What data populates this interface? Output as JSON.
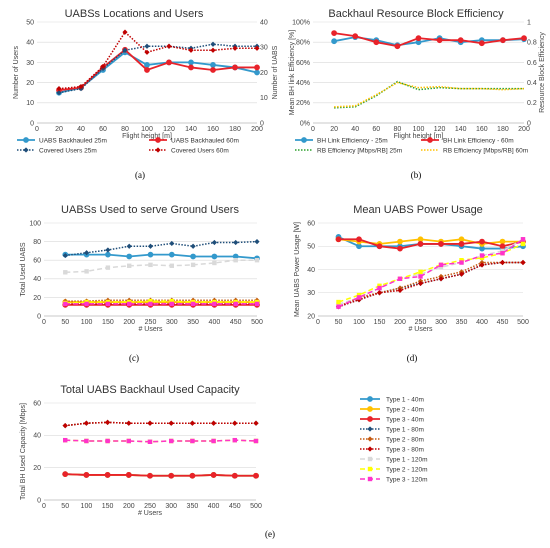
{
  "chart_data": [
    {
      "panel_label": "(a)",
      "type": "line",
      "title": "UABSs Locations and Users",
      "xlabel": "Flight height [m]",
      "ylabel": "Number of Users",
      "y2label": "Number of UABS",
      "x": [
        20,
        40,
        60,
        80,
        100,
        120,
        140,
        160,
        180,
        200
      ],
      "xlim": [
        0,
        200
      ],
      "ylim": [
        0,
        50
      ],
      "y2lim": [
        0,
        40
      ],
      "xticks": [
        "0",
        "20",
        "40",
        "60",
        "80",
        "100",
        "120",
        "140",
        "160",
        "180",
        "200"
      ],
      "yticks": [
        "0",
        "10",
        "20",
        "30",
        "40",
        "50"
      ],
      "y2ticks": [
        "0",
        "10",
        "20",
        "30",
        "40"
      ],
      "legend_position": "bottom",
      "series": [
        {
          "name": "UABS Backhauled 25m",
          "axis": "y2",
          "style": "solid",
          "color": "#3399cc",
          "marker": "circle",
          "values": [
            12,
            14,
            21,
            28,
            23,
            24,
            24,
            23,
            22,
            20
          ]
        },
        {
          "name": "UABS Backhauled 60m",
          "axis": "y2",
          "style": "solid",
          "color": "#e8232a",
          "marker": "circle",
          "values": [
            13,
            14,
            22,
            29,
            21,
            24,
            22,
            21,
            22,
            22
          ]
        },
        {
          "name": "Covered Users 25m",
          "axis": "y",
          "style": "dotted",
          "color": "#1f4e79",
          "marker": "diamond",
          "values": [
            15,
            17,
            27,
            36,
            38,
            38,
            37,
            39,
            38,
            38
          ]
        },
        {
          "name": "Covered Users 60m",
          "axis": "y",
          "style": "dotted",
          "color": "#c00000",
          "marker": "diamond",
          "values": [
            17,
            18,
            28,
            45,
            35,
            38,
            36,
            36,
            37,
            37
          ]
        }
      ]
    },
    {
      "panel_label": "(b)",
      "type": "line",
      "title": "Backhaul Resource Block Efficiency",
      "xlabel": "Flight height [m]",
      "ylabel": "Mean BH link Efficiency [%]",
      "y2label": "Resource Block Efficiency",
      "x": [
        20,
        40,
        60,
        80,
        100,
        120,
        140,
        160,
        180,
        200
      ],
      "xlim": [
        0,
        200
      ],
      "ylim": [
        0,
        100
      ],
      "y2lim": [
        0,
        1
      ],
      "xticks": [
        "0",
        "20",
        "40",
        "60",
        "80",
        "100",
        "120",
        "140",
        "160",
        "180",
        "200"
      ],
      "yticks": [
        "0%",
        "20%",
        "40%",
        "60%",
        "80%",
        "100%"
      ],
      "y2ticks": [
        "0",
        "0.2",
        "0.4",
        "0.6",
        "0.8",
        "1"
      ],
      "legend_position": "bottom",
      "series": [
        {
          "name": "BH Link Efficiency - 25m",
          "axis": "y",
          "style": "solid",
          "color": "#3399cc",
          "marker": "circle",
          "values": [
            81,
            85,
            82,
            77,
            80,
            84,
            80,
            82,
            82,
            83
          ]
        },
        {
          "name": "BH Link Efficiency - 60m",
          "axis": "y",
          "style": "solid",
          "color": "#e8232a",
          "marker": "circle",
          "values": [
            89,
            86,
            80,
            76,
            84,
            82,
            82,
            79,
            82,
            84
          ]
        },
        {
          "name": "RB Efficiency [Mbps/RB] 25m",
          "axis": "y2",
          "style": "dotted",
          "color": "#2ca02c",
          "marker": "none",
          "values": [
            0.15,
            0.16,
            0.27,
            0.41,
            0.33,
            0.35,
            0.34,
            0.34,
            0.34,
            0.34
          ]
        },
        {
          "name": "RB Efficiency [Mbps/RB] 60m",
          "axis": "y2",
          "style": "dotted",
          "color": "#ffc000",
          "marker": "none",
          "values": [
            0.16,
            0.17,
            0.28,
            0.4,
            0.35,
            0.36,
            0.34,
            0.34,
            0.33,
            0.34
          ]
        }
      ]
    },
    {
      "panel_label": "(c)",
      "type": "line",
      "title": "UABSs Used to serve Ground Users",
      "xlabel": "# Users",
      "ylabel": "Total Used UABS",
      "x": [
        50,
        100,
        150,
        200,
        250,
        300,
        350,
        400,
        450,
        500
      ],
      "xlim": [
        0,
        500
      ],
      "ylim": [
        0,
        100
      ],
      "xticks": [
        "0",
        "50",
        "100",
        "150",
        "200",
        "250",
        "300",
        "350",
        "400",
        "450",
        "500"
      ],
      "yticks": [
        "0",
        "20",
        "40",
        "60",
        "80",
        "100"
      ],
      "series": [
        {
          "name": "Type 1 - 40m",
          "values": [
            66,
            66,
            66,
            64,
            66,
            66,
            64,
            64,
            64,
            62
          ]
        },
        {
          "name": "Type 2 - 40m",
          "values": [
            15,
            15,
            15,
            15,
            15,
            15,
            15,
            15,
            15,
            15
          ]
        },
        {
          "name": "Type 3 - 40m",
          "values": [
            12,
            12,
            12,
            12,
            12,
            12,
            12,
            12,
            12,
            12
          ]
        },
        {
          "name": "Type 1 - 80m",
          "values": [
            65,
            68,
            71,
            75,
            75,
            78,
            75,
            79,
            79,
            80
          ]
        },
        {
          "name": "Type 2 - 80m",
          "values": [
            16,
            16,
            17,
            17,
            17,
            17,
            17,
            17,
            17,
            17
          ]
        },
        {
          "name": "Type 3 - 80m",
          "values": [
            13,
            13,
            13,
            13,
            13,
            13,
            13,
            13,
            13,
            13
          ]
        },
        {
          "name": "Type 1 - 120m",
          "values": [
            47,
            48,
            52,
            54,
            55,
            54,
            55,
            57,
            60,
            60
          ]
        },
        {
          "name": "Type 2 - 120m",
          "values": [
            14,
            15,
            15,
            15,
            16,
            16,
            15,
            15,
            15,
            15
          ]
        },
        {
          "name": "Type 3 - 120m",
          "values": [
            13,
            13,
            13,
            13,
            13,
            13,
            13,
            13,
            13,
            13
          ]
        }
      ]
    },
    {
      "panel_label": "(d)",
      "type": "line",
      "title": "Mean UABS Power Usage",
      "xlabel": "# Users",
      "ylabel": "Mean UABS Power Usage [W]",
      "x": [
        50,
        100,
        150,
        200,
        250,
        300,
        350,
        400,
        450,
        500
      ],
      "xlim": [
        0,
        500
      ],
      "ylim": [
        20,
        60
      ],
      "xticks": [
        "0",
        "50",
        "100",
        "150",
        "200",
        "250",
        "300",
        "350",
        "400",
        "450",
        "500"
      ],
      "yticks": [
        "20",
        "30",
        "40",
        "50",
        "60"
      ],
      "series": [
        {
          "name": "Type 1 - 40m",
          "values": [
            54,
            50,
            50,
            50,
            51,
            51,
            50,
            49,
            49,
            50
          ]
        },
        {
          "name": "Type 2 - 40m",
          "values": [
            53,
            52,
            51,
            52,
            53,
            52,
            53,
            51,
            52,
            52
          ]
        },
        {
          "name": "Type 3 - 40m",
          "values": [
            53,
            53,
            50,
            49,
            51,
            51,
            51,
            52,
            50,
            52
          ]
        },
        {
          "name": "Type 1 - 80m",
          "values": [
            24,
            27,
            30,
            32,
            34,
            36,
            38,
            42,
            43,
            43
          ]
        },
        {
          "name": "Type 2 - 80m",
          "values": [
            24,
            28,
            30,
            32,
            35,
            37,
            39,
            43,
            43,
            43
          ]
        },
        {
          "name": "Type 3 - 80m",
          "values": [
            24,
            27,
            30,
            31,
            34,
            36,
            38,
            42,
            43,
            43
          ]
        },
        {
          "name": "Type 1 - 120m",
          "values": [
            25,
            28,
            32,
            36,
            38,
            41,
            43,
            46,
            48,
            53
          ]
        },
        {
          "name": "Type 2 - 120m",
          "values": [
            26,
            29,
            33,
            36,
            39,
            42,
            44,
            45,
            47,
            51
          ]
        },
        {
          "name": "Type 3 - 120m",
          "values": [
            24,
            28,
            32,
            36,
            37,
            42,
            43,
            46,
            47,
            53
          ]
        }
      ]
    },
    {
      "panel_label": "(e)",
      "type": "line",
      "title": "Total UABS Backhaul Used Capacity",
      "xlabel": "# Users",
      "ylabel": "Total BH Used Capacity [Mbps]",
      "x": [
        50,
        100,
        150,
        200,
        250,
        300,
        350,
        400,
        450,
        500
      ],
      "xlim": [
        0,
        500
      ],
      "ylim": [
        0,
        60
      ],
      "xticks": [
        "0",
        "50",
        "100",
        "150",
        "200",
        "250",
        "300",
        "350",
        "400",
        "450",
        "500"
      ],
      "yticks": [
        "0",
        "20",
        "40",
        "60"
      ],
      "legend_position": "right",
      "series": [
        {
          "name": "Type 1 - 40m",
          "style": "solid",
          "color": "#3399cc",
          "marker": "circle",
          "values": [
            16,
            15.5,
            15.5,
            15.5,
            15,
            15,
            15,
            15.5,
            15,
            15
          ]
        },
        {
          "name": "Type 2 - 40m",
          "style": "solid",
          "color": "#ffc000",
          "marker": "circle",
          "values": [
            16,
            15.5,
            15.5,
            15.5,
            15,
            15,
            15,
            15.5,
            15,
            15
          ]
        },
        {
          "name": "Type 3 - 40m",
          "style": "solid",
          "color": "#e8232a",
          "marker": "circle",
          "values": [
            16,
            15.5,
            15.5,
            15.5,
            15,
            15,
            15,
            15.5,
            15,
            15
          ]
        },
        {
          "name": "Type 1 - 80m",
          "style": "dotted",
          "color": "#1f4e79",
          "marker": "diamond",
          "values": [
            46,
            47.5,
            48,
            47.5,
            47.5,
            47.5,
            47.5,
            47.5,
            47.5,
            47.5
          ]
        },
        {
          "name": "Type 2 - 80m",
          "style": "dotted",
          "color": "#c55a11",
          "marker": "diamond",
          "values": [
            46,
            47.5,
            48,
            47.5,
            47.5,
            47.5,
            47.5,
            47.5,
            47.5,
            47.5
          ]
        },
        {
          "name": "Type 3 - 80m",
          "style": "dotted",
          "color": "#c00000",
          "marker": "diamond",
          "values": [
            46,
            47.5,
            48,
            47.5,
            47.5,
            47.5,
            47.5,
            47.5,
            47.5,
            47.5
          ]
        },
        {
          "name": "Type 1 - 120m",
          "style": "dashed",
          "color": "#d9d9d9",
          "marker": "square",
          "values": [
            37,
            36.5,
            36.5,
            36.5,
            36,
            36.5,
            36.5,
            36.5,
            37,
            36.5
          ]
        },
        {
          "name": "Type 2 - 120m",
          "style": "dashed",
          "color": "#ffff00",
          "marker": "square",
          "values": [
            37,
            36.5,
            36.5,
            36.5,
            36,
            36.5,
            36.5,
            36.5,
            37,
            36.5
          ]
        },
        {
          "name": "Type 3 - 120m",
          "style": "dashed",
          "color": "#ff33cc",
          "marker": "square",
          "values": [
            37,
            36.5,
            36.5,
            36.5,
            36,
            36.5,
            36.5,
            36.5,
            37,
            36.5
          ]
        }
      ]
    }
  ]
}
